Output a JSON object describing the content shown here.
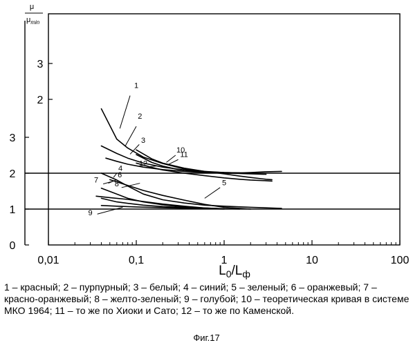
{
  "chart_data": {
    "type": "line",
    "x_scale": "log",
    "xlim": [
      0.01,
      100
    ],
    "ylim": [
      0,
      4
    ],
    "x_ticks": [
      0.01,
      0.1,
      1,
      10,
      100
    ],
    "x_tick_labels": [
      "0,01",
      "0,1",
      "1",
      "10",
      "100"
    ],
    "y_ticks_main": [
      0,
      1,
      2,
      3
    ],
    "y_tick_labels_main": [
      "0",
      "1",
      "2",
      "3"
    ],
    "y_ticks_upper": [
      2,
      3
    ],
    "y_tick_labels_upper": [
      "2",
      "3"
    ],
    "ylabel_num": "μ",
    "ylabel_den": "μ",
    "ylabel_den_sub": "min",
    "xlabel_main": "L",
    "xlabel_main_sub": "0",
    "xlabel_sep": "/L",
    "xlabel_sub2": "ф",
    "reference_lines": [
      1,
      2
    ],
    "grid": false,
    "series": [
      {
        "name": "1",
        "x": [
          0.04,
          0.06,
          0.08,
          0.12,
          0.2,
          0.35,
          0.6,
          1.0,
          1.5
        ],
        "y": [
          3.26,
          2.95,
          2.7,
          2.45,
          2.27,
          2.12,
          2.05,
          2.02,
          2.01
        ]
      },
      {
        "name": "2",
        "x": [
          0.04,
          0.06,
          0.08,
          0.12,
          0.2,
          0.35,
          0.6,
          1.0,
          1.5,
          2.0
        ],
        "y": [
          2.76,
          2.55,
          2.42,
          2.28,
          2.17,
          2.09,
          2.04,
          2.02,
          2.01,
          2.0
        ]
      },
      {
        "name": "3",
        "x": [
          0.045,
          0.06,
          0.08,
          0.12,
          0.2,
          0.35,
          0.6,
          1.0,
          1.5,
          2.0,
          3.0
        ],
        "y": [
          2.42,
          2.33,
          2.25,
          2.17,
          2.1,
          2.05,
          2.02,
          2.0,
          1.99,
          1.98,
          1.97
        ]
      },
      {
        "name": "4",
        "x": [
          0.04,
          0.06,
          0.08,
          0.12,
          0.2,
          0.35,
          0.6,
          1.0,
          2.0,
          4.5
        ],
        "y": [
          2.0,
          1.81,
          1.64,
          1.42,
          1.26,
          1.17,
          1.11,
          1.08,
          1.05,
          1.02
        ]
      },
      {
        "name": "5",
        "x": [
          0.05,
          0.08,
          0.12,
          0.2,
          0.35,
          0.6,
          1.0,
          1.5,
          2.0
        ],
        "y": [
          1.82,
          1.66,
          1.52,
          1.38,
          1.25,
          1.13,
          1.05,
          1.02,
          1.0
        ]
      },
      {
        "name": "6",
        "x": [
          0.04,
          0.06,
          0.08,
          0.12,
          0.2,
          0.35,
          0.6,
          1.0
        ],
        "y": [
          1.58,
          1.42,
          1.3,
          1.2,
          1.12,
          1.06,
          1.03,
          1.01
        ]
      },
      {
        "name": "7",
        "x": [
          0.035,
          0.05,
          0.08,
          0.12,
          0.2,
          0.35,
          0.6,
          1.0
        ],
        "y": [
          1.36,
          1.32,
          1.27,
          1.21,
          1.14,
          1.08,
          1.03,
          1.01
        ]
      },
      {
        "name": "8",
        "x": [
          0.04,
          0.06,
          0.08,
          0.12,
          0.2,
          0.35,
          0.6,
          1.0,
          1.5
        ],
        "y": [
          1.3,
          1.2,
          1.16,
          1.11,
          1.07,
          1.04,
          1.02,
          1.01,
          1.0
        ]
      },
      {
        "name": "9",
        "x": [
          0.04,
          0.06,
          0.1,
          0.2,
          0.4,
          0.7,
          1.0
        ],
        "y": [
          1.1,
          1.08,
          1.06,
          1.04,
          1.02,
          1.01,
          1.0
        ]
      },
      {
        "name": "10",
        "x": [
          0.1,
          0.15,
          0.2,
          0.3,
          0.5,
          0.8,
          1.2,
          2.0,
          3.0,
          4.5
        ],
        "y": [
          2.52,
          2.3,
          2.2,
          2.1,
          2.04,
          2.01,
          2.0,
          2.02,
          2.04,
          2.05
        ]
      },
      {
        "name": "11",
        "x": [
          0.1,
          0.15,
          0.2,
          0.35,
          0.6,
          1.0,
          1.5,
          2.0,
          3.0,
          3.5
        ],
        "y": [
          2.65,
          2.4,
          2.28,
          2.14,
          2.05,
          1.98,
          1.92,
          1.88,
          1.83,
          1.82
        ]
      },
      {
        "name": "12",
        "x": [
          0.1,
          0.15,
          0.2,
          0.35,
          0.6,
          1.0,
          1.5,
          2.0,
          3.0,
          3.5
        ],
        "y": [
          2.28,
          2.16,
          2.09,
          2.0,
          1.93,
          1.87,
          1.83,
          1.81,
          1.79,
          1.78
        ]
      }
    ],
    "series_labels": [
      {
        "text": "1",
        "x": 0.1,
        "y": 3.45
      },
      {
        "text": "2",
        "x": 0.11,
        "y": 3.17
      },
      {
        "text": "3",
        "x": 0.12,
        "y": 2.85
      },
      {
        "text": "4",
        "x": 0.066,
        "y": 2.07
      },
      {
        "text": "5",
        "x": 1.0,
        "y": 1.66
      },
      {
        "text": "6",
        "x": 0.065,
        "y": 1.88
      },
      {
        "text": "7",
        "x": 0.035,
        "y": 1.74
      },
      {
        "text": "8",
        "x": 0.06,
        "y": 1.63
      },
      {
        "text": "9",
        "x": 0.03,
        "y": 0.83
      },
      {
        "text": "10",
        "x": 0.32,
        "y": 2.58
      },
      {
        "text": "11",
        "x": 0.35,
        "y": 2.45
      },
      {
        "text": "12",
        "x": 0.12,
        "y": 2.2
      }
    ]
  },
  "caption": "1 – красный; 2 – пурпурный; 3 – белый; 4 – синий; 5 – зеленый; 6 – оранжевый; 7 – красно-оранжевый; 8 – желто-зеленый; 9 – голубой; 10 – теоретическая кривая в системе МКО 1964; 11 – то же по Хиоки и Сато; 12 – то же по Каменской.",
  "figure_label": "Фиг.17"
}
